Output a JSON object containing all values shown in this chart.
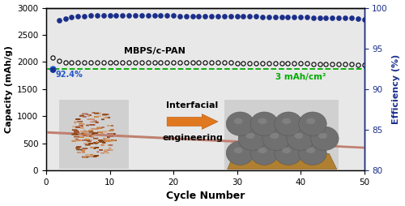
{
  "xlabel": "Cycle Number",
  "ylabel_left": "Capacity (mAh/g)",
  "ylabel_right": "Efficiency (%)",
  "xlim": [
    0,
    50
  ],
  "ylim_left": [
    0,
    3000
  ],
  "ylim_right": [
    80,
    100
  ],
  "yticks_left": [
    0,
    500,
    1000,
    1500,
    2000,
    2500,
    3000
  ],
  "yticks_right": [
    80,
    85,
    90,
    95,
    100
  ],
  "xticks": [
    0,
    10,
    20,
    30,
    40,
    50
  ],
  "dashed_line_y": 1870,
  "dashed_line_color": "#00aa00",
  "label_92": "92.4%",
  "label_92_color": "#2255cc",
  "label_3mah": "3 mAh/cm²",
  "label_3mah_color": "#00aa00",
  "mbps_label": "MBPS/c-PAN",
  "capacity_values": [
    2080,
    2020,
    1995,
    1990,
    1990,
    1988,
    1988,
    1988,
    1988,
    1988,
    1988,
    1990,
    1990,
    1990,
    1990,
    1990,
    1990,
    1990,
    1990,
    1990,
    1988,
    1988,
    1988,
    1988,
    1986,
    1986,
    1985,
    1985,
    1984,
    1983,
    1982,
    1981,
    1980,
    1979,
    1978,
    1977,
    1976,
    1975,
    1974,
    1973,
    1970,
    1968,
    1966,
    1964,
    1962,
    1960,
    1958,
    1956,
    1954,
    1952
  ],
  "efficiency_values": [
    92.4,
    98.5,
    98.7,
    98.85,
    98.95,
    99.0,
    99.05,
    99.05,
    99.05,
    99.05,
    99.05,
    99.05,
    99.05,
    99.05,
    99.05,
    99.05,
    99.05,
    99.05,
    99.05,
    99.05,
    99.0,
    99.0,
    99.0,
    99.0,
    99.0,
    99.0,
    99.0,
    99.0,
    99.0,
    99.0,
    98.95,
    98.95,
    98.95,
    98.9,
    98.9,
    98.9,
    98.9,
    98.85,
    98.85,
    98.85,
    98.85,
    98.8,
    98.8,
    98.8,
    98.8,
    98.8,
    98.75,
    98.75,
    98.7,
    98.6
  ],
  "dot_color_efficiency": "#1a2e8a",
  "bg_color": "#e8e8e8",
  "arrow_color": "#e07820",
  "interfacial_line1": "Interfacial",
  "interfacial_line2": "engineering"
}
